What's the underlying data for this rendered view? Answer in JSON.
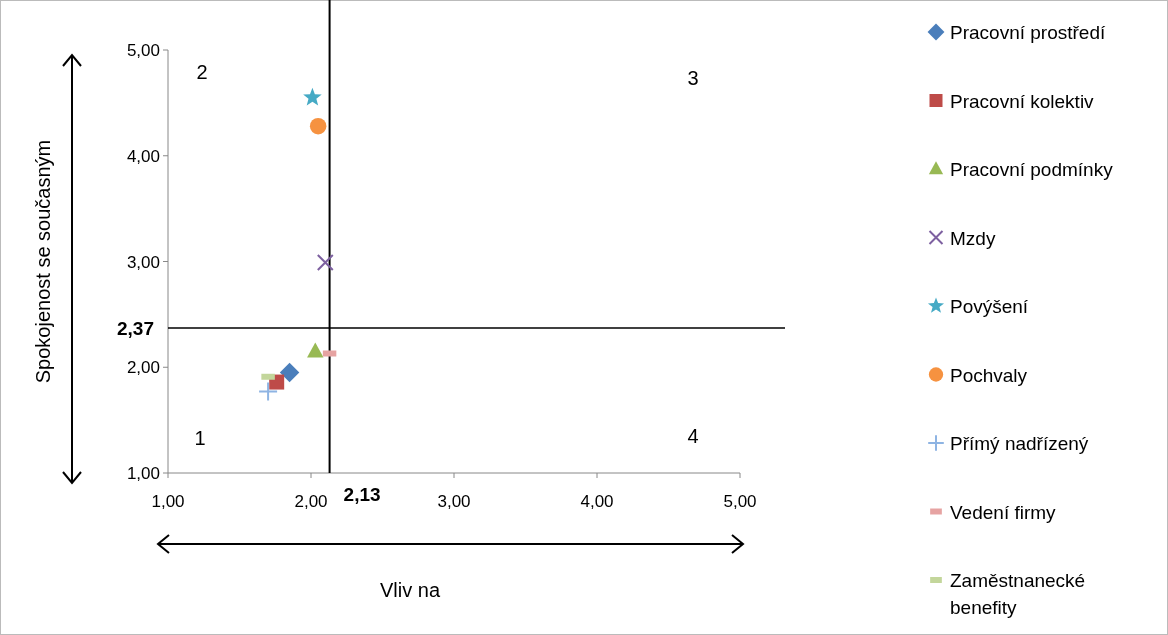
{
  "chart_data": {
    "type": "scatter",
    "xlabel": "Vliv na",
    "ylabel": "Spokojenost se současným",
    "xlim": [
      1,
      5
    ],
    "ylim": [
      1,
      5
    ],
    "xticks": [
      {
        "value": 1,
        "label": "1,00"
      },
      {
        "value": 2,
        "label": "2,00"
      },
      {
        "value": 3,
        "label": "3,00"
      },
      {
        "value": 4,
        "label": "4,00"
      },
      {
        "value": 5,
        "label": "5,00"
      }
    ],
    "yticks": [
      {
        "value": 1,
        "label": "1,00"
      },
      {
        "value": 2,
        "label": "2,00"
      },
      {
        "value": 3,
        "label": "3,00"
      },
      {
        "value": 4,
        "label": "4,00"
      },
      {
        "value": 5,
        "label": "5,00"
      }
    ],
    "grid": false,
    "legend": "right",
    "ref_lines": [
      {
        "axis": "x",
        "value": 2.13,
        "label": "2,13",
        "color": "#000000"
      },
      {
        "axis": "y",
        "value": 2.37,
        "label": "2,37",
        "color": "#000000"
      }
    ],
    "annotations": [
      "1",
      "2",
      "3",
      "4"
    ],
    "series": [
      {
        "name": "Pracovní prostředí",
        "color": "#4a7ebb",
        "marker": "diamond",
        "x": [
          1.85
        ],
        "values": [
          1.95
        ]
      },
      {
        "name": "Pracovní kolektiv",
        "color": "#be4b48",
        "marker": "square",
        "x": [
          1.76
        ],
        "values": [
          1.86
        ]
      },
      {
        "name": "Pracovní podmínky",
        "color": "#98b954",
        "marker": "triangle",
        "x": [
          2.03
        ],
        "values": [
          2.15
        ]
      },
      {
        "name": "Mzdy",
        "color": "#7d60a0",
        "marker": "cross",
        "x": [
          2.1
        ],
        "values": [
          2.99
        ]
      },
      {
        "name": "Povýšení",
        "color": "#46aac5",
        "marker": "star",
        "x": [
          2.01
        ],
        "values": [
          4.55
        ]
      },
      {
        "name": "Pochvaly",
        "color": "#f69240",
        "marker": "circle",
        "x": [
          2.05
        ],
        "values": [
          4.28
        ]
      },
      {
        "name": "Přímý nadřízený",
        "color": "#8eb4e3",
        "marker": "plus",
        "x": [
          1.7
        ],
        "values": [
          1.77
        ]
      },
      {
        "name": "Vedení firmy",
        "color": "#e6a3a2",
        "x": [
          2.13
        ],
        "values": [
          2.13
        ]
      },
      {
        "name": "Zaměstnanecké benefity",
        "color": "#c3d69b",
        "x": [
          1.7
        ],
        "values": [
          1.91
        ]
      }
    ]
  }
}
